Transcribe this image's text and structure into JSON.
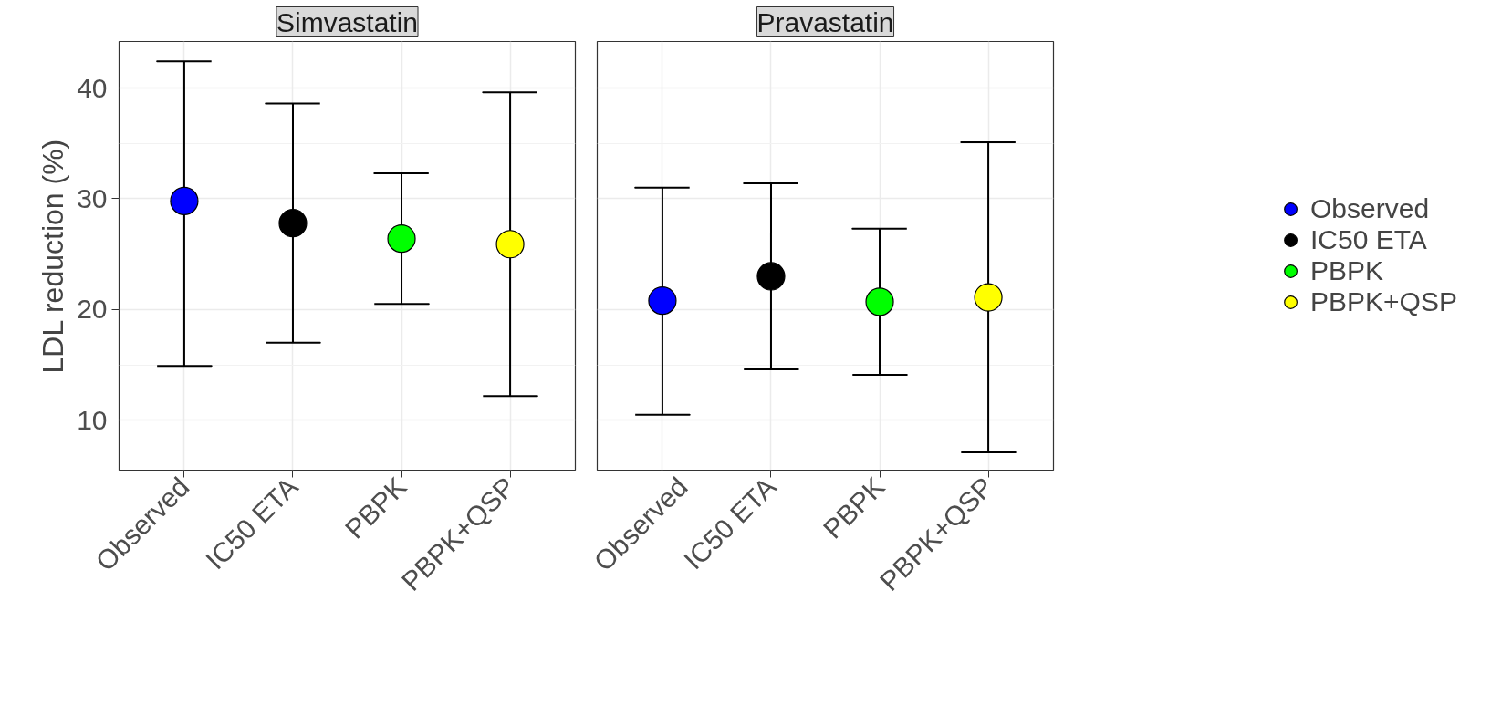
{
  "chart_data": [
    {
      "type": "scatter",
      "title": "Simvastatin",
      "ylabel": "LDL reduction (%)",
      "categories": [
        "Observed",
        "IC50 ETA",
        "PBPK",
        "PBPK+QSP"
      ],
      "series": [
        {
          "color": "#0000ff",
          "values": [
            29.8,
            null,
            null,
            null
          ],
          "errors": [
            [
              14.9,
              42.4
            ],
            null,
            null,
            null
          ]
        },
        {
          "color": "#000000",
          "values": [
            null,
            27.8,
            null,
            null
          ],
          "errors": [
            null,
            [
              17.0,
              38.6
            ],
            null,
            null
          ]
        },
        {
          "color": "#00ff00",
          "values": [
            null,
            null,
            26.4,
            null
          ],
          "errors": [
            null,
            null,
            [
              20.5,
              32.3
            ],
            null
          ]
        },
        {
          "color": "#ffff00",
          "values": [
            null,
            null,
            null,
            25.9
          ],
          "errors": [
            null,
            null,
            null,
            [
              12.2,
              39.6
            ]
          ]
        }
      ],
      "ylim": [
        5.5,
        44.2
      ],
      "yticks": [
        10,
        20,
        30,
        40
      ],
      "grid": true,
      "marker": "circle"
    },
    {
      "type": "scatter",
      "title": "Pravastatin",
      "categories": [
        "Observed",
        "IC50 ETA",
        "PBPK",
        "PBPK+QSP"
      ],
      "series": [
        {
          "name": "Observed",
          "color": "#0000ff",
          "values": [
            20.8,
            null,
            null,
            null
          ],
          "errors": [
            [
              10.5,
              31.0
            ],
            null,
            null,
            null
          ]
        },
        {
          "name": "IC50 ETA",
          "color": "#000000",
          "values": [
            null,
            23.0,
            null,
            null
          ],
          "errors": [
            null,
            [
              14.6,
              31.4
            ],
            null,
            null
          ]
        },
        {
          "name": "PBPK",
          "color": "#00ff00",
          "values": [
            null,
            null,
            20.7,
            null
          ],
          "errors": [
            null,
            null,
            [
              14.1,
              27.3
            ],
            null
          ]
        },
        {
          "name": "PBPK+QSP",
          "color": "#ffff00",
          "values": [
            null,
            null,
            null,
            21.1
          ],
          "errors": [
            null,
            null,
            null,
            [
              7.1,
              35.1
            ]
          ]
        }
      ],
      "ylim": [
        5.5,
        44.2
      ],
      "yticks": [
        10,
        20,
        30,
        40
      ],
      "grid": true,
      "marker": "circle",
      "legend": "right",
      "tick_labels": "x"
    }
  ]
}
